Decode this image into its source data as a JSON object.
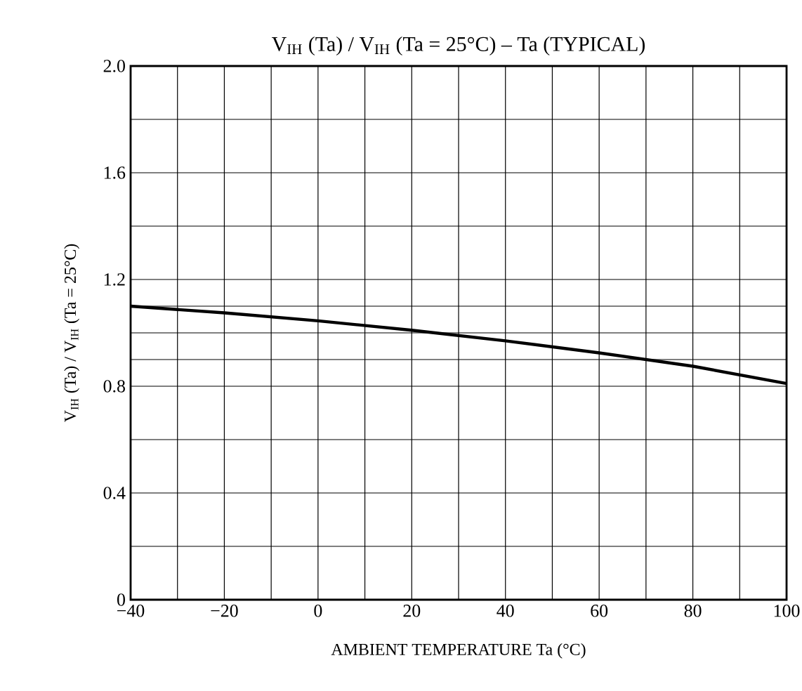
{
  "chart_data": {
    "type": "line",
    "title": "V$_{IH}$ (Ta) / V$_{IH}$ (Ta = 25°C)  –  Ta (TYPICAL)",
    "xlabel": "AMBIENT TEMPERATURE    Ta    (°C)",
    "ylabel": "V$_{IH}$ (Ta) / V$_{IH}$ (Ta = 25°C)",
    "x": [
      -40,
      -20,
      0,
      20,
      40,
      60,
      80,
      100
    ],
    "series": [
      {
        "color": "#000000",
        "values": [
          1.1,
          1.075,
          1.045,
          1.01,
          0.97,
          0.925,
          0.875,
          0.81
        ]
      }
    ],
    "xlim": [
      -40,
      100
    ],
    "xticks": [
      {
        "value": -40,
        "label": "−40"
      },
      {
        "value": -30,
        "label": null
      },
      {
        "value": -20,
        "label": "−20"
      },
      {
        "value": -10,
        "label": null
      },
      0,
      {
        "value": 10,
        "label": null
      },
      20,
      {
        "value": 30,
        "label": null
      },
      40,
      {
        "value": 50,
        "label": null
      },
      60,
      {
        "value": 70,
        "label": null
      },
      80,
      {
        "value": 90,
        "label": null
      },
      100
    ],
    "ylim": [
      0,
      2.0
    ],
    "yticks": [
      0,
      {
        "value": 0.2,
        "label": null
      },
      0.4,
      {
        "value": 0.6,
        "label": null
      },
      0.8,
      {
        "value": 0.9,
        "label": null
      },
      {
        "value": 1.0,
        "label": null
      },
      {
        "value": 1.1,
        "label": null
      },
      1.2,
      {
        "value": 1.4,
        "label": null
      },
      1.6,
      {
        "value": 1.8,
        "label": null
      },
      {
        "value": 2.0,
        "label": "2.0"
      }
    ],
    "grid": true,
    "marker": "none",
    "line_style": "solid"
  }
}
